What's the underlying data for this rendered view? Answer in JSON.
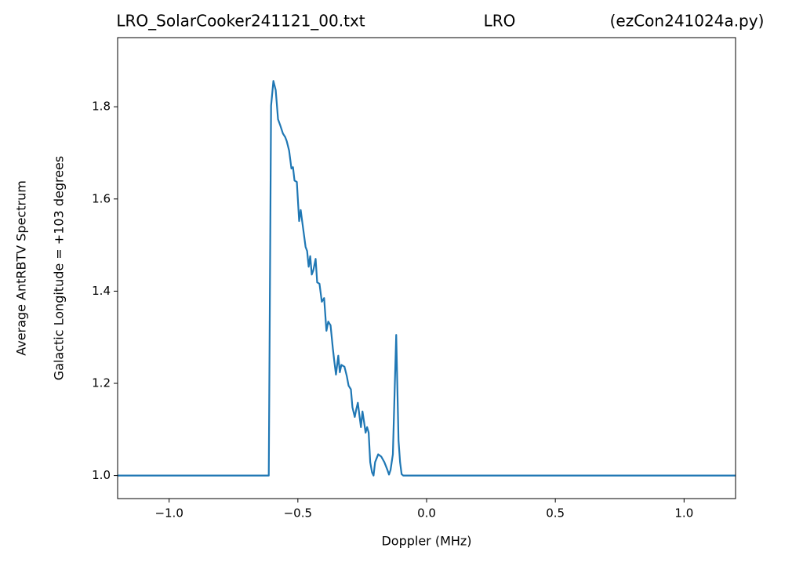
{
  "chart_data": {
    "type": "line",
    "title": [
      "LRO_SolarCooker241121_00.txt",
      "LRO",
      "(ezCon241024a.py)"
    ],
    "xlabel": "Doppler (MHz)",
    "ylabel": [
      "Average AntRBTV Spectrum",
      "Galactic Longitude = +103 degrees"
    ],
    "color": "#1f77b4",
    "x": [
      -1.2,
      -0.613,
      -0.604,
      -0.595,
      -0.586,
      -0.577,
      -0.568,
      -0.558,
      -0.549,
      -0.543,
      -0.534,
      -0.525,
      -0.519,
      -0.513,
      -0.504,
      -0.495,
      -0.489,
      -0.48,
      -0.47,
      -0.464,
      -0.458,
      -0.452,
      -0.446,
      -0.44,
      -0.431,
      -0.425,
      -0.416,
      -0.407,
      -0.398,
      -0.389,
      -0.382,
      -0.373,
      -0.364,
      -0.358,
      -0.352,
      -0.343,
      -0.337,
      -0.331,
      -0.319,
      -0.31,
      -0.303,
      -0.294,
      -0.288,
      -0.279,
      -0.273,
      -0.267,
      -0.261,
      -0.255,
      -0.249,
      -0.243,
      -0.237,
      -0.231,
      -0.225,
      -0.219,
      -0.212,
      -0.206,
      -0.2,
      -0.188,
      -0.176,
      -0.164,
      -0.152,
      -0.146,
      -0.14,
      -0.131,
      -0.118,
      -0.109,
      -0.103,
      -0.097,
      -0.091,
      1.2
    ],
    "values": [
      1.0,
      1.0,
      1.802,
      1.856,
      1.836,
      1.773,
      1.759,
      1.742,
      1.734,
      1.725,
      1.705,
      1.666,
      1.669,
      1.64,
      1.637,
      1.552,
      1.576,
      1.538,
      1.496,
      1.487,
      1.453,
      1.476,
      1.436,
      1.445,
      1.47,
      1.419,
      1.416,
      1.377,
      1.385,
      1.314,
      1.334,
      1.326,
      1.275,
      1.246,
      1.219,
      1.26,
      1.224,
      1.24,
      1.236,
      1.216,
      1.195,
      1.187,
      1.148,
      1.127,
      1.144,
      1.158,
      1.131,
      1.105,
      1.139,
      1.117,
      1.093,
      1.105,
      1.093,
      1.029,
      1.007,
      1.0,
      1.029,
      1.046,
      1.041,
      1.029,
      1.012,
      1.002,
      1.012,
      1.046,
      1.305,
      1.076,
      1.029,
      1.003,
      1.0,
      1.0
    ],
    "xlim": [
      -1.2,
      1.2
    ],
    "ylim": [
      0.95,
      1.95
    ],
    "xticks": [
      {
        "value": -1.0,
        "label": "−1.0"
      },
      {
        "value": -0.5,
        "label": "−0.5"
      },
      {
        "value": 0.0,
        "label": "0.0"
      },
      0.5,
      {
        "value": 1.0,
        "label": "1.0"
      }
    ],
    "yticks": [
      {
        "value": 1.0,
        "label": "1.0"
      },
      1.2,
      1.4,
      1.6,
      1.8
    ]
  }
}
